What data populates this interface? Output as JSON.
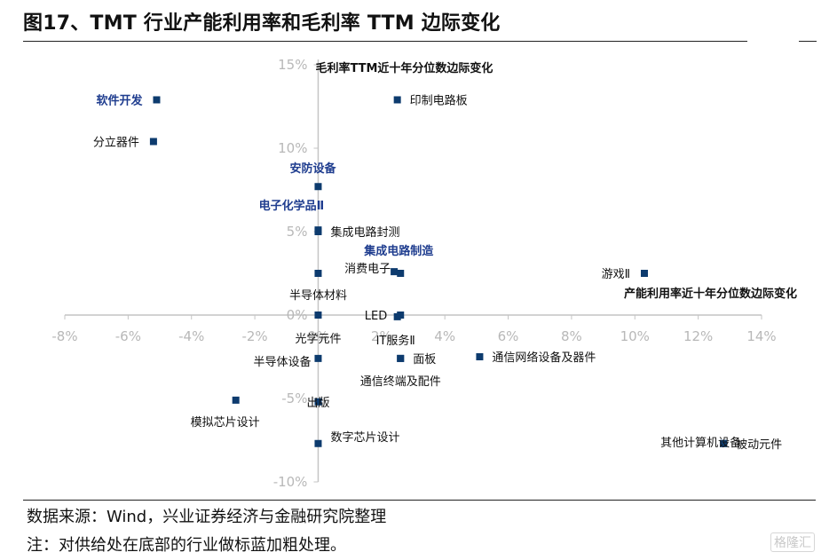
{
  "title": "图17、TMT 行业产能利用率和毛利率 TTM 边际变化",
  "source": "数据来源：Wind，兴业证券经济与金融研究院整理",
  "note": "注：对供给处在底部的行业做标蓝加粗处理。",
  "watermark": "格隆汇",
  "chart_data": {
    "type": "scatter",
    "xlabel": "产能利用率近十年分位数边际变化",
    "ylabel": "毛利率TTM近十年分位数边际变化",
    "xlim": [
      -0.08,
      0.14
    ],
    "ylim": [
      -0.1,
      0.15
    ],
    "x_ticks": [
      "-8%",
      "-6%",
      "-4%",
      "-2%",
      "0%",
      "2%",
      "4%",
      "6%",
      "8%",
      "10%",
      "12%",
      "14%"
    ],
    "x_tick_values": [
      -0.08,
      -0.06,
      -0.04,
      -0.02,
      0.0,
      0.02,
      0.04,
      0.06,
      0.08,
      0.1,
      0.12,
      0.14
    ],
    "y_ticks": [
      "15%",
      "10%",
      "5%",
      "0%",
      "-5%",
      "-10%"
    ],
    "y_tick_values": [
      0.15,
      0.1,
      0.05,
      0.0,
      -0.05,
      -0.1
    ],
    "marker_color": "#0d3b6e",
    "highlight_color": "#1f3d8f",
    "points": [
      {
        "name": "软件开发",
        "x": -0.051,
        "y": 0.129,
        "highlight": true
      },
      {
        "name": "印制电路板",
        "x": 0.025,
        "y": 0.129,
        "highlight": false
      },
      {
        "name": "分立器件",
        "x": -0.052,
        "y": 0.104,
        "highlight": false
      },
      {
        "name": "安防设备",
        "x": 0.0,
        "y": 0.077,
        "highlight": true
      },
      {
        "name": "电子化学品Ⅱ",
        "x": 0.0,
        "y": 0.051,
        "highlight": true
      },
      {
        "name": "集成电路封测",
        "x": 0.0,
        "y": 0.05,
        "highlight": false
      },
      {
        "name": "集成电路制造",
        "x": 0.026,
        "y": 0.025,
        "highlight": true
      },
      {
        "name": "消费电子",
        "x": 0.024,
        "y": 0.026,
        "highlight": false
      },
      {
        "name": "半导体材料",
        "x": 0.0,
        "y": 0.025,
        "highlight": false
      },
      {
        "name": "游戏Ⅱ",
        "x": 0.103,
        "y": 0.025,
        "highlight": false
      },
      {
        "name": "LED",
        "x": 0.026,
        "y": 0.0,
        "highlight": false
      },
      {
        "name": "光学元件",
        "x": 0.0,
        "y": 0.0,
        "highlight": false
      },
      {
        "name": "IT服务Ⅱ",
        "x": 0.025,
        "y": -0.001,
        "highlight": false
      },
      {
        "name": "半导体设备",
        "x": 0.0,
        "y": -0.026,
        "highlight": false
      },
      {
        "name": "面板",
        "x": 0.026,
        "y": -0.026,
        "highlight": false
      },
      {
        "name": "通信网络设备及器件",
        "x": 0.051,
        "y": -0.025,
        "highlight": false
      },
      {
        "name": "通信终端及配件",
        "x": 0.026,
        "y": -0.026,
        "highlight": false
      },
      {
        "name": "模拟芯片设计",
        "x": -0.026,
        "y": -0.051,
        "highlight": false
      },
      {
        "name": "出版",
        "x": 0.0,
        "y": -0.052,
        "highlight": false
      },
      {
        "name": "其他计算机设备",
        "x": 0.128,
        "y": -0.077,
        "highlight": false
      },
      {
        "name": "数字芯片设计",
        "x": 0.0,
        "y": -0.077,
        "highlight": false
      },
      {
        "name": "被动元件",
        "x": 0.128,
        "y": -0.077,
        "highlight": false
      }
    ]
  }
}
